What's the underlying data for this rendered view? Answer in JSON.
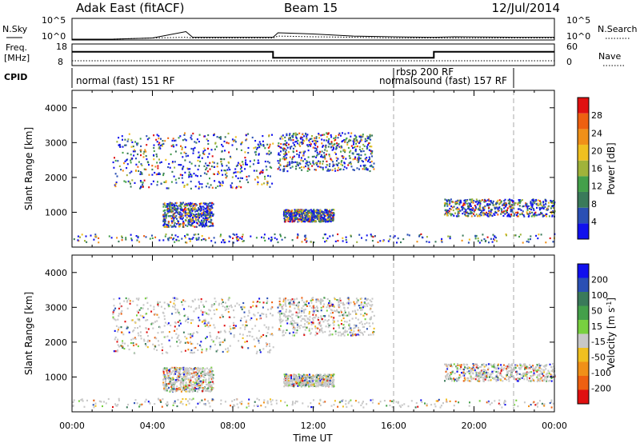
{
  "header": {
    "station": "Adak East (fitACF)",
    "beam": "Beam 15",
    "date": "12/Jul/2014"
  },
  "noise_panel": {
    "left_label": "N.Sky",
    "left_ticks": [
      "10^5",
      "10^0"
    ],
    "right_label": "N.Search",
    "right_ticks": [
      "10^5",
      "10^0"
    ]
  },
  "freq_panel": {
    "left_label_1": "Freq.",
    "left_label_2": "[MHz]",
    "left_ticks": [
      "18",
      "8"
    ],
    "right_label": "Nave",
    "right_ticks": [
      "60",
      "0"
    ]
  },
  "cpid_panel": {
    "label": "CPID",
    "programs": [
      "normal (fast) 151 RF",
      "rbsp 200 RF",
      "normalsound (fast) 157 RF"
    ]
  },
  "colors": {
    "power_scale": [
      "#1010ee",
      "#2a4fb4",
      "#3a7a5a",
      "#44a04a",
      "#a0b33a",
      "#f0c020",
      "#f09018",
      "#ee6010",
      "#e01010"
    ],
    "velocity_scale": [
      "#e01010",
      "#ee6010",
      "#f09018",
      "#f0c020",
      "#c8c8c8",
      "#78d040",
      "#44a04a",
      "#3a7a5a",
      "#2a4fb4",
      "#1010ee"
    ]
  },
  "chart_data": [
    {
      "type": "line",
      "panel": "noise",
      "x": [
        "00:00",
        "02:00",
        "04:00",
        "05:40",
        "06:00",
        "08:00",
        "10:00",
        "10:15",
        "12:00",
        "14:00",
        "16:00",
        "18:00",
        "19:00",
        "22:00",
        "00:00"
      ],
      "series": [
        {
          "name": "N.Sky",
          "values": [
            1,
            1,
            2,
            80,
            3,
            3,
            3,
            40,
            20,
            6,
            4,
            3,
            4,
            3,
            3
          ]
        },
        {
          "name": "N.Search",
          "values": [
            1,
            1,
            2,
            3,
            2,
            2,
            2,
            6,
            4,
            3,
            2,
            2,
            2,
            2,
            2
          ]
        }
      ],
      "scale": "log",
      "ylim": [
        1,
        100000
      ]
    },
    {
      "type": "line",
      "panel": "frequency",
      "x": [
        "00:00",
        "10:00",
        "10:00",
        "18:00",
        "18:00",
        "00:00"
      ],
      "series": [
        {
          "name": "Freq.",
          "values": [
            14.5,
            14.5,
            11.5,
            11.5,
            14.5,
            14.5
          ]
        },
        {
          "name": "Nave",
          "values": [
            10,
            10,
            10,
            10,
            10,
            10
          ]
        }
      ],
      "ylim": [
        8,
        18
      ]
    },
    {
      "type": "heatmap",
      "panel": "power",
      "xlabel": "",
      "ylabel": "Slant Range [km]",
      "x_ticks": [
        "00:00",
        "04:00",
        "08:00",
        "12:00",
        "16:00",
        "20:00",
        "00:00"
      ],
      "y_ticks": [
        1000,
        2000,
        3000,
        4000
      ],
      "ylim": [
        0,
        4500
      ],
      "xlim_hours": [
        0,
        24
      ],
      "colorbar_label": "Power [dB]",
      "colorbar_ticks": [
        4,
        8,
        12,
        16,
        20,
        24,
        28
      ],
      "echo_regions": [
        {
          "t0": 2.0,
          "t1": 10.0,
          "r_low": 1700,
          "r_high": 3300
        },
        {
          "t0": 10.2,
          "t1": 15.0,
          "r_low": 2200,
          "r_high": 3300
        },
        {
          "t0": 4.5,
          "t1": 7.0,
          "r_low": 600,
          "r_high": 1300
        },
        {
          "t0": 10.5,
          "t1": 13.0,
          "r_low": 750,
          "r_high": 1100
        },
        {
          "t0": 18.5,
          "t1": 24.0,
          "r_low": 900,
          "r_high": 1400
        },
        {
          "t0": 0.0,
          "t1": 24.0,
          "r_low": 150,
          "r_high": 400
        }
      ]
    },
    {
      "type": "heatmap",
      "panel": "velocity",
      "xlabel": "Time UT",
      "ylabel": "Slant Range [km]",
      "x_ticks": [
        "00:00",
        "04:00",
        "08:00",
        "12:00",
        "16:00",
        "20:00",
        "00:00"
      ],
      "y_ticks": [
        1000,
        2000,
        3000,
        4000
      ],
      "ylim": [
        0,
        4500
      ],
      "xlim_hours": [
        0,
        24
      ],
      "colorbar_label": "Velocity [m s^-1]",
      "colorbar_ticks": [
        -200,
        -100,
        -50,
        -15,
        15,
        50,
        100,
        200
      ],
      "echo_regions": [
        {
          "t0": 2.0,
          "t1": 10.0,
          "r_low": 1700,
          "r_high": 3300
        },
        {
          "t0": 10.2,
          "t1": 15.0,
          "r_low": 2200,
          "r_high": 3300
        },
        {
          "t0": 4.5,
          "t1": 7.0,
          "r_low": 600,
          "r_high": 1300
        },
        {
          "t0": 10.5,
          "t1": 13.0,
          "r_low": 750,
          "r_high": 1100
        },
        {
          "t0": 18.5,
          "t1": 24.0,
          "r_low": 900,
          "r_high": 1400
        },
        {
          "t0": 0.0,
          "t1": 24.0,
          "r_low": 150,
          "r_high": 400
        }
      ]
    }
  ]
}
